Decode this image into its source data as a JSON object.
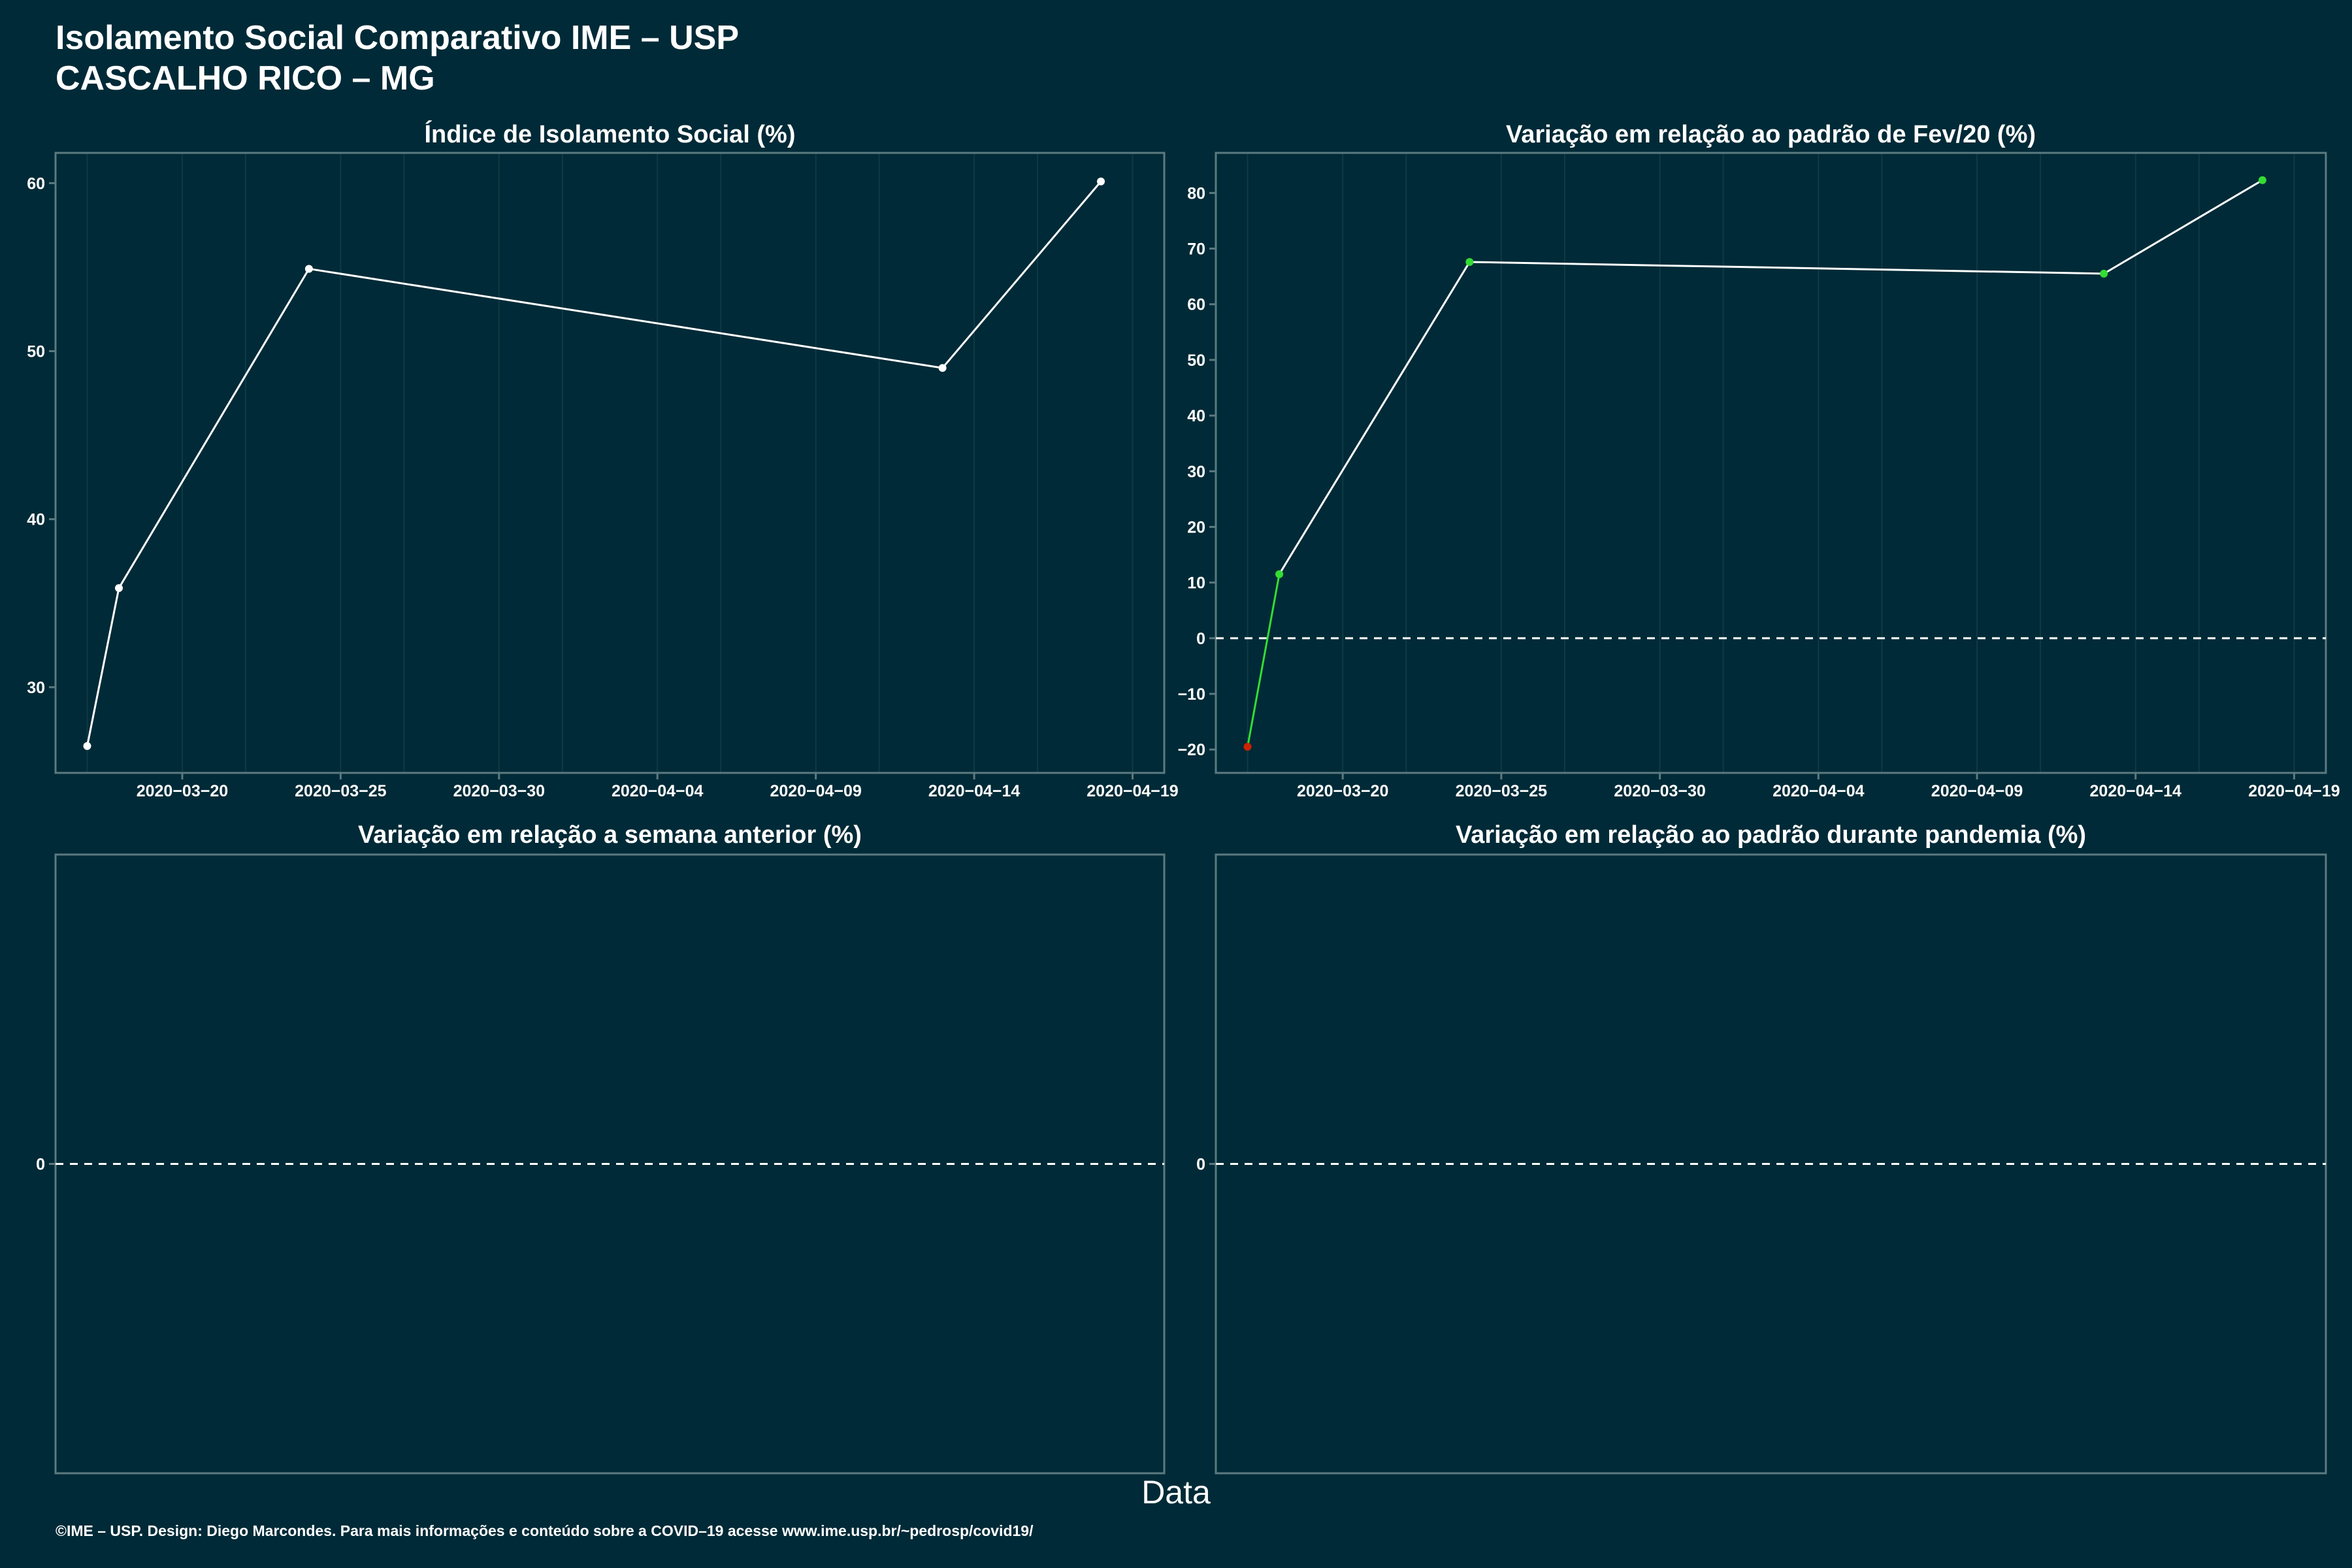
{
  "title": "Isolamento Social Comparativo IME – USP",
  "subtitle": "CASCALHO RICO – MG",
  "xlabel": "Data",
  "caption": "©IME – USP. Design: Diego Marcondes. Para mais informações e conteúdo sobre a COVID–19 acesse www.ime.usp.br/~pedrosp/covid19/",
  "colors": {
    "background": "#002a37",
    "line": "#ffffff",
    "positive": "#33dd33",
    "negative": "#cc2200",
    "frame": "#5c7a80",
    "grid": "#0e3a45"
  },
  "chart_data": [
    {
      "type": "line",
      "title": "Índice de Isolamento Social (%)",
      "x": [
        "2020-03-17",
        "2020-03-18",
        "2020-03-24",
        "2020-04-13",
        "2020-04-18"
      ],
      "values": [
        26.5,
        35.9,
        54.9,
        49.0,
        60.1
      ],
      "x_ticks": [
        "2020-03-20",
        "2020-03-25",
        "2020-03-30",
        "2020-04-04",
        "2020-04-09",
        "2020-04-14",
        "2020-04-19"
      ],
      "y_ticks": [
        30,
        40,
        50,
        60
      ],
      "ylim": [
        24.9,
        61.8
      ],
      "grid": true
    },
    {
      "type": "line",
      "title": "Variação em relação ao padrão de Fev/20 (%)",
      "x": [
        "2020-03-17",
        "2020-03-18",
        "2020-03-24",
        "2020-04-13",
        "2020-04-18"
      ],
      "values": [
        -19.5,
        11.5,
        67.6,
        65.5,
        82.3
      ],
      "x_ticks": [
        "2020-03-20",
        "2020-03-25",
        "2020-03-30",
        "2020-04-04",
        "2020-04-09",
        "2020-04-14",
        "2020-04-19"
      ],
      "y_ticks": [
        -20,
        -10,
        0,
        10,
        20,
        30,
        40,
        50,
        60,
        70,
        80
      ],
      "ylim": [
        -24.2,
        87.2
      ],
      "reference_line": 0,
      "grid": true
    },
    {
      "type": "line",
      "title": "Variação em relação a semana anterior (%)",
      "x": [],
      "values": [],
      "y_ticks": [
        0
      ],
      "reference_line": 0
    },
    {
      "type": "line",
      "title": "Variação em relação ao padrão durante pandemia (%)",
      "x": [],
      "values": [],
      "y_ticks": [
        0
      ],
      "reference_line": 0
    }
  ]
}
